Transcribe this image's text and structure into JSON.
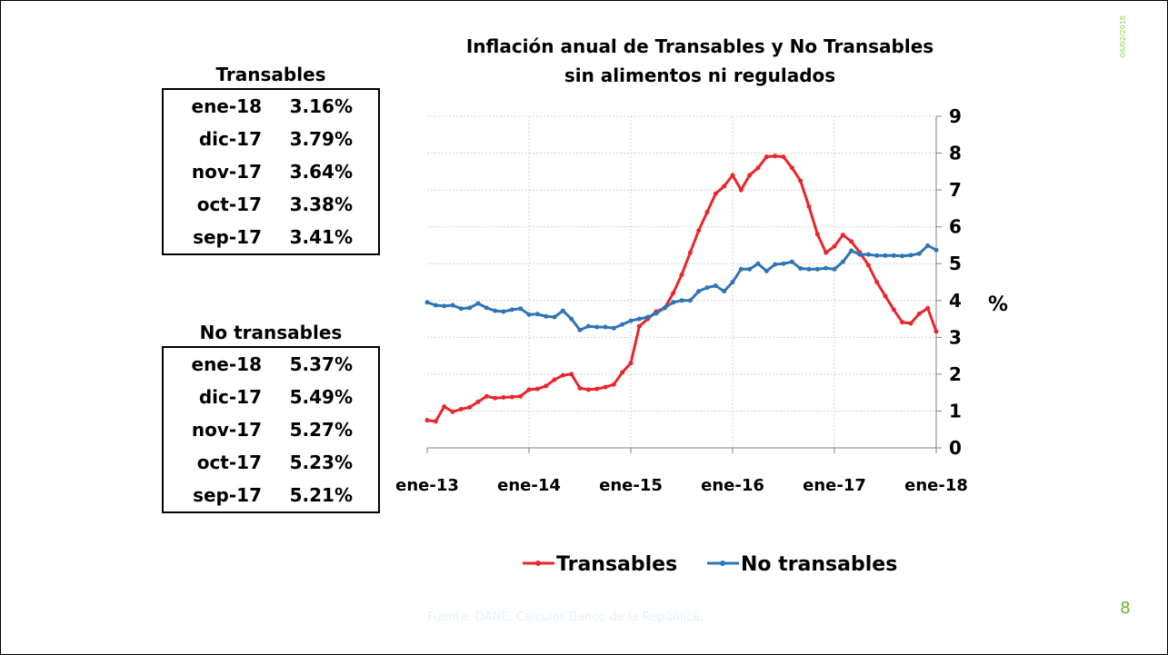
{
  "slide": {
    "date": "06/02/2018",
    "source": "Fuente: DANE. Cálculos Banco de la República.",
    "page": "8"
  },
  "tables": [
    {
      "title": "Transables",
      "rows": [
        [
          "ene-18",
          "3.16%"
        ],
        [
          "dic-17",
          "3.79%"
        ],
        [
          "nov-17",
          "3.64%"
        ],
        [
          "oct-17",
          "3.38%"
        ],
        [
          "sep-17",
          "3.41%"
        ]
      ]
    },
    {
      "title": "No transables",
      "rows": [
        [
          "ene-18",
          "5.37%"
        ],
        [
          "dic-17",
          "5.49%"
        ],
        [
          "nov-17",
          "5.27%"
        ],
        [
          "oct-17",
          "5.23%"
        ],
        [
          "sep-17",
          "5.21%"
        ]
      ]
    }
  ],
  "chart_data": {
    "type": "line",
    "title": [
      "Inflación anual de Transables y No Transables",
      "sin alimentos ni regulados"
    ],
    "y_label": "%",
    "categories": [
      "ene-13",
      null,
      null,
      null,
      null,
      null,
      null,
      null,
      null,
      null,
      null,
      null,
      "ene-14",
      null,
      null,
      null,
      null,
      null,
      null,
      null,
      null,
      null,
      null,
      null,
      "ene-15",
      null,
      null,
      null,
      null,
      null,
      null,
      null,
      null,
      null,
      null,
      null,
      "ene-16",
      null,
      null,
      null,
      null,
      null,
      null,
      null,
      null,
      null,
      null,
      null,
      "ene-17",
      null,
      null,
      null,
      null,
      null,
      null,
      null,
      null,
      null,
      null,
      null,
      "ene-18"
    ],
    "series": [
      {
        "name": "Transables",
        "color": "#e8262b",
        "values": [
          0.75,
          0.72,
          1.12,
          0.98,
          1.05,
          1.1,
          1.25,
          1.4,
          1.35,
          1.37,
          1.38,
          1.4,
          1.58,
          1.6,
          1.68,
          1.85,
          1.97,
          2.0,
          1.62,
          1.58,
          1.6,
          1.65,
          1.72,
          2.05,
          2.3,
          3.3,
          3.5,
          3.7,
          3.8,
          4.2,
          4.7,
          5.3,
          5.9,
          6.4,
          6.9,
          7.1,
          7.4,
          7.0,
          7.4,
          7.6,
          7.9,
          7.92,
          7.9,
          7.6,
          7.25,
          6.55,
          5.8,
          5.3,
          5.47,
          5.78,
          5.6,
          5.3,
          4.96,
          4.5,
          4.12,
          3.75,
          3.41,
          3.38,
          3.64,
          3.79,
          3.16
        ]
      },
      {
        "name": "No transables",
        "color": "#2e75b6",
        "values": [
          3.95,
          3.87,
          3.85,
          3.87,
          3.78,
          3.8,
          3.92,
          3.8,
          3.72,
          3.7,
          3.75,
          3.78,
          3.62,
          3.63,
          3.57,
          3.55,
          3.72,
          3.5,
          3.2,
          3.3,
          3.28,
          3.28,
          3.25,
          3.35,
          3.45,
          3.5,
          3.55,
          3.65,
          3.8,
          3.95,
          4.0,
          4.0,
          4.25,
          4.35,
          4.4,
          4.25,
          4.5,
          4.85,
          4.85,
          5.0,
          4.8,
          4.98,
          5.0,
          5.05,
          4.87,
          4.85,
          4.85,
          4.88,
          4.85,
          5.05,
          5.35,
          5.25,
          5.25,
          5.22,
          5.22,
          5.22,
          5.21,
          5.23,
          5.27,
          5.49,
          5.37
        ]
      }
    ],
    "ylim": [
      0,
      9
    ],
    "yticks": [
      0,
      1,
      2,
      3,
      4,
      5,
      6,
      7,
      8,
      9
    ],
    "grid": true,
    "legend": "bottom"
  }
}
